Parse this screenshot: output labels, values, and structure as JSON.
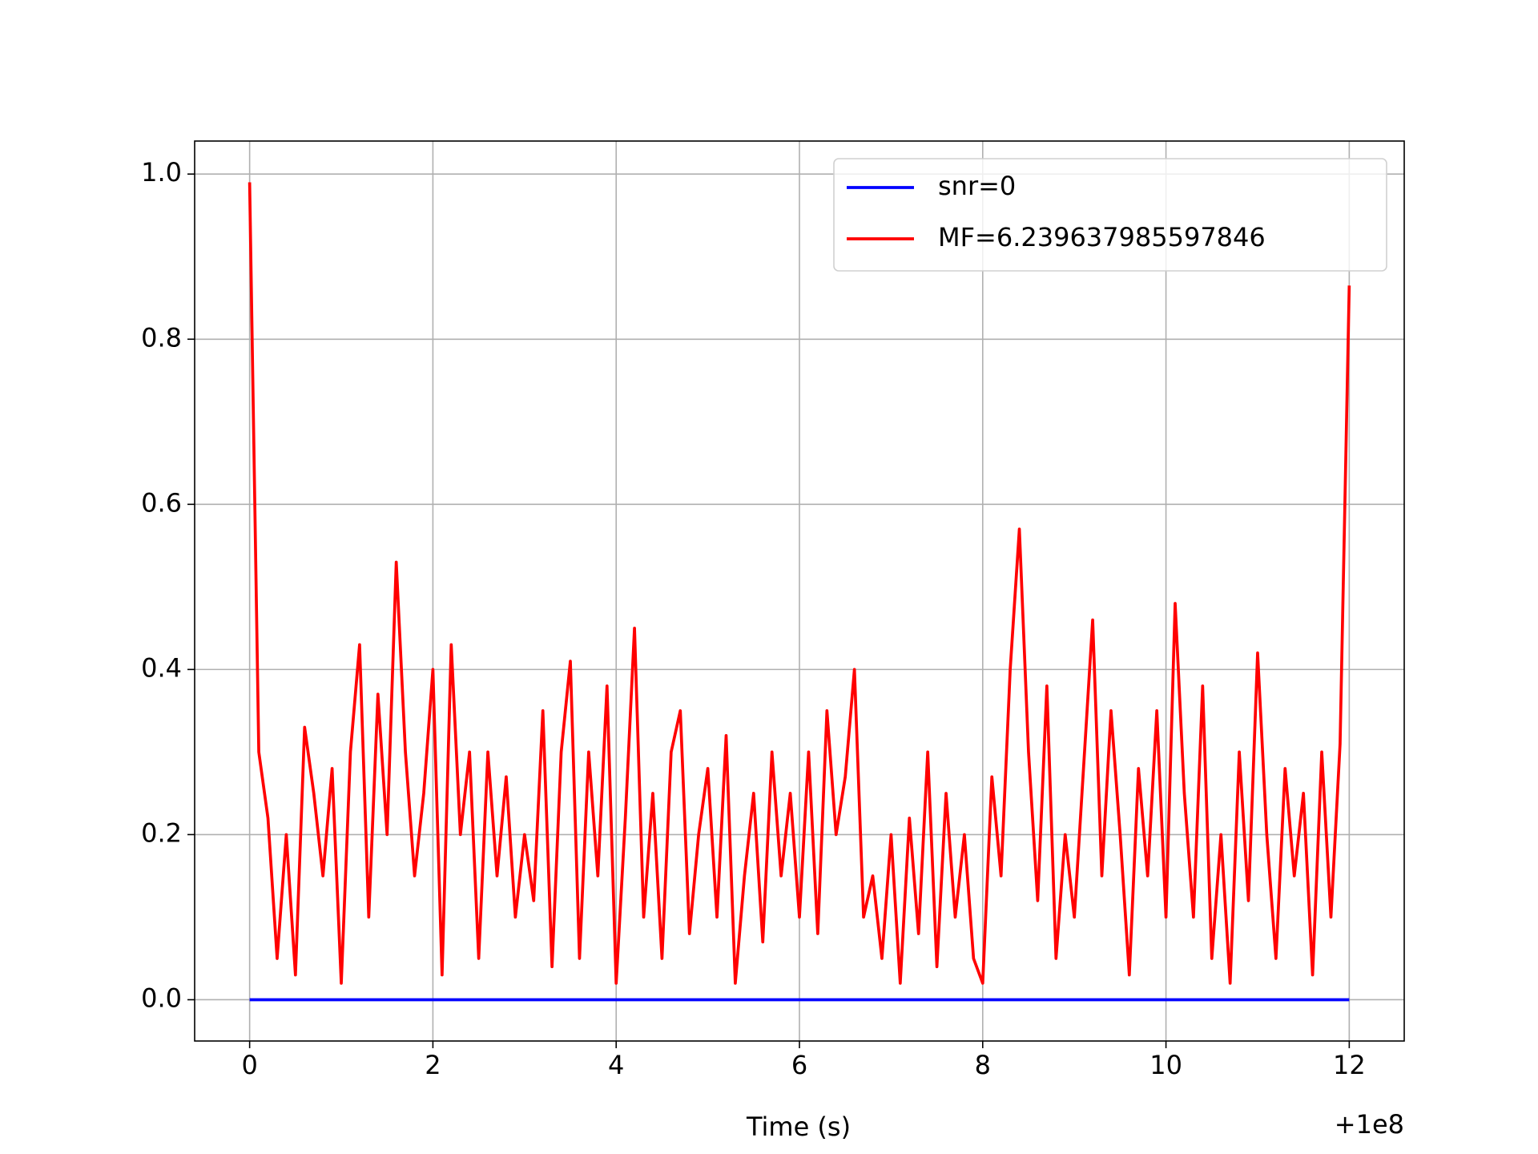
{
  "chart_data": {
    "type": "line",
    "xlabel": "Time (s)",
    "annotations": [
      "+1e8"
    ],
    "x": [
      0,
      0.1,
      0.2,
      0.3,
      0.4,
      0.5,
      0.6,
      0.7,
      0.8,
      0.9,
      1.0,
      1.1,
      1.2,
      1.3,
      1.4,
      1.5,
      1.6,
      1.7,
      1.8,
      1.9,
      2.0,
      2.1,
      2.2,
      2.3,
      2.4,
      2.5,
      2.6,
      2.7,
      2.8,
      2.9,
      3.0,
      3.1,
      3.2,
      3.3,
      3.4,
      3.5,
      3.6,
      3.7,
      3.8,
      3.9,
      4.0,
      4.1,
      4.2,
      4.3,
      4.4,
      4.5,
      4.6,
      4.7,
      4.8,
      4.9,
      5.0,
      5.1,
      5.2,
      5.3,
      5.4,
      5.5,
      5.6,
      5.7,
      5.8,
      5.9,
      6.0,
      6.1,
      6.2,
      6.3,
      6.4,
      6.5,
      6.6,
      6.7,
      6.8,
      6.9,
      7.0,
      7.1,
      7.2,
      7.3,
      7.4,
      7.5,
      7.6,
      7.7,
      7.8,
      7.9,
      8.0,
      8.1,
      8.2,
      8.3,
      8.4,
      8.5,
      8.6,
      8.7,
      8.8,
      8.9,
      9.0,
      9.1,
      9.2,
      9.3,
      9.4,
      9.5,
      9.6,
      9.7,
      9.8,
      9.9,
      10.0,
      10.1,
      10.2,
      10.3,
      10.4,
      10.5,
      10.6,
      10.7,
      10.8,
      10.9,
      11.0,
      11.1,
      11.2,
      11.3,
      11.4,
      11.5,
      11.6,
      11.7,
      11.8,
      11.9,
      12.0
    ],
    "series": [
      {
        "name": "snr=0",
        "color": "#0000ff",
        "values": [
          0,
          0,
          0,
          0,
          0,
          0,
          0,
          0,
          0,
          0,
          0,
          0,
          0,
          0,
          0,
          0,
          0,
          0,
          0,
          0,
          0,
          0,
          0,
          0,
          0,
          0,
          0,
          0,
          0,
          0,
          0,
          0,
          0,
          0,
          0,
          0,
          0,
          0,
          0,
          0,
          0,
          0,
          0,
          0,
          0,
          0,
          0,
          0,
          0,
          0,
          0,
          0,
          0,
          0,
          0,
          0,
          0,
          0,
          0,
          0,
          0,
          0,
          0,
          0,
          0,
          0,
          0,
          0,
          0,
          0,
          0,
          0,
          0,
          0,
          0,
          0,
          0,
          0,
          0,
          0,
          0,
          0,
          0,
          0,
          0,
          0,
          0,
          0,
          0,
          0,
          0,
          0,
          0,
          0,
          0,
          0,
          0,
          0,
          0,
          0,
          0,
          0,
          0,
          0,
          0,
          0,
          0,
          0,
          0,
          0,
          0,
          0,
          0,
          0,
          0,
          0,
          0,
          0,
          0,
          0,
          0
        ]
      },
      {
        "name": "MF=6.239637985597846",
        "color": "#ff0000",
        "values": [
          0.99,
          0.3,
          0.22,
          0.05,
          0.2,
          0.03,
          0.33,
          0.25,
          0.15,
          0.28,
          0.02,
          0.3,
          0.43,
          0.1,
          0.37,
          0.2,
          0.53,
          0.3,
          0.15,
          0.25,
          0.4,
          0.03,
          0.43,
          0.2,
          0.3,
          0.05,
          0.3,
          0.15,
          0.27,
          0.1,
          0.2,
          0.12,
          0.35,
          0.04,
          0.3,
          0.41,
          0.05,
          0.3,
          0.15,
          0.38,
          0.02,
          0.22,
          0.45,
          0.1,
          0.25,
          0.05,
          0.3,
          0.35,
          0.08,
          0.2,
          0.28,
          0.1,
          0.32,
          0.02,
          0.15,
          0.25,
          0.07,
          0.3,
          0.15,
          0.25,
          0.1,
          0.3,
          0.08,
          0.35,
          0.2,
          0.27,
          0.4,
          0.1,
          0.15,
          0.05,
          0.2,
          0.02,
          0.22,
          0.08,
          0.3,
          0.04,
          0.25,
          0.1,
          0.2,
          0.05,
          0.02,
          0.27,
          0.15,
          0.4,
          0.57,
          0.3,
          0.12,
          0.38,
          0.05,
          0.2,
          0.1,
          0.28,
          0.46,
          0.15,
          0.35,
          0.2,
          0.03,
          0.28,
          0.15,
          0.35,
          0.1,
          0.48,
          0.25,
          0.1,
          0.38,
          0.05,
          0.2,
          0.02,
          0.3,
          0.12,
          0.42,
          0.2,
          0.05,
          0.28,
          0.15,
          0.25,
          0.03,
          0.3,
          0.1,
          0.31,
          0.865
        ]
      }
    ],
    "xlim": [
      -0.6,
      12.6
    ],
    "ylim": [
      -0.05,
      1.04
    ],
    "xticks": [
      0,
      2,
      4,
      6,
      8,
      10,
      12
    ],
    "yticks": [
      {
        "value": 0,
        "label": "0.0"
      },
      0.2,
      0.4,
      0.6,
      0.8,
      {
        "value": 1,
        "label": "1.0"
      }
    ],
    "grid": true,
    "legend": "upper right"
  }
}
